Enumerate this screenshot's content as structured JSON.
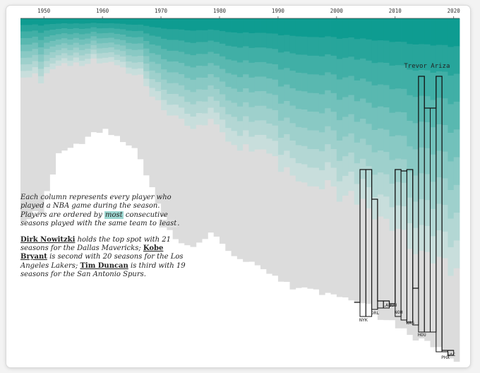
{
  "chart_data": {
    "type": "area",
    "x_range": [
      1946,
      2020
    ],
    "ticks": [
      "1950",
      "1960",
      "1970",
      "1980",
      "1990",
      "2000",
      "2010",
      "2020"
    ],
    "highlight_player": "Trevor Ariza",
    "stint_teams": [
      {
        "label": "NYK",
        "x": 2004
      },
      {
        "label": "ORL",
        "x": 2006
      },
      {
        "label": "LAL",
        "x": 2008
      },
      {
        "label": "HOU",
        "x": 2009
      },
      {
        "label": "NOH",
        "x": 2010
      },
      {
        "label": "WAS",
        "x": 2012
      },
      {
        "label": "HOU",
        "x": 2014
      },
      {
        "label": "PHX",
        "x": 2018
      },
      {
        "label": "SAC",
        "x": 2019
      }
    ],
    "colors": {
      "most": "#0e9c91",
      "mid": "#7cc5bf",
      "least": "#dcdcdc",
      "outline": "#111111"
    }
  },
  "annotation": {
    "p1_a": "Each column represents every player who played a NBA game during the season. Players are ordered by ",
    "p1_most": "most",
    "p1_b": " consecutive seasons played with the same team to ",
    "p1_least": "least",
    "p1_c": ".",
    "p2_name1": "Dirk Nowitzki",
    "p2_a": " holds the top spot with 21 seasons for the Dallas Mavericks; ",
    "p2_name2": "Kobe Bryant",
    "p2_b": " is second with 20 seasons for the Los Angeles Lakers; ",
    "p2_name3": "Tim Duncan",
    "p2_c": " is third with 19 seasons for the San Antonio Spurs."
  }
}
